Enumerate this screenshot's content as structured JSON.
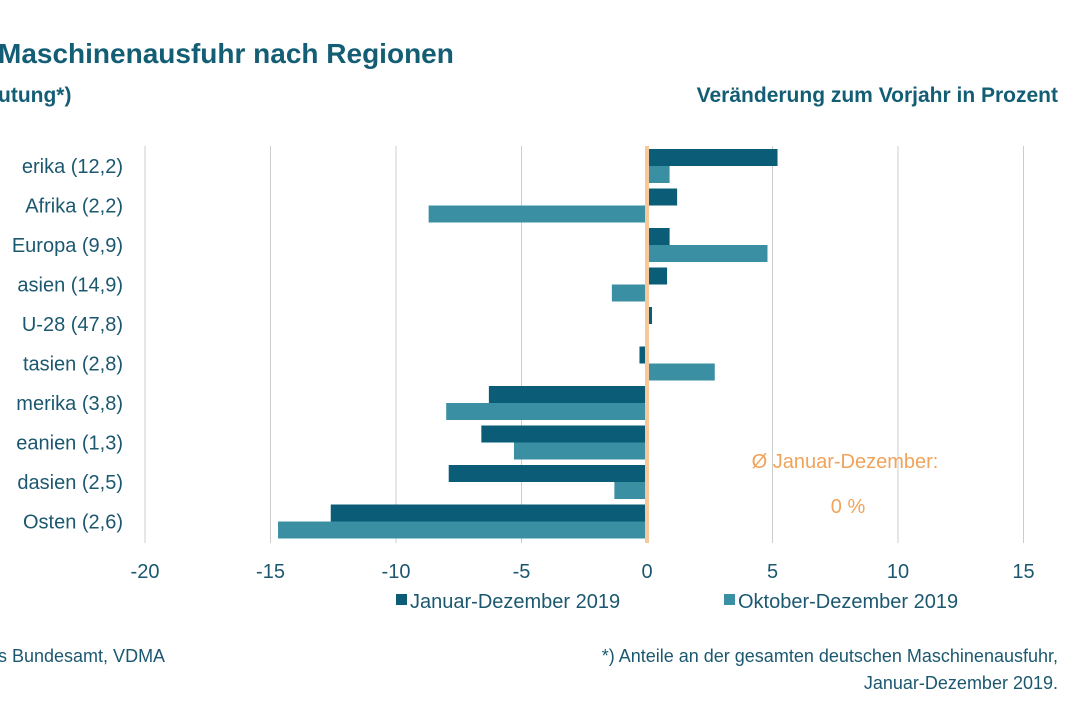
{
  "header": {
    "title": "Maschinenausfuhr nach Regionen",
    "subtitle_left": "utung*)",
    "subtitle_right": "Veränderung zum Vorjahr in Prozent"
  },
  "footer": {
    "source": "s Bundesamt, VDMA",
    "note_line1": "*) Anteile an der gesamten deutschen Maschinenausfuhr,",
    "note_line2": "Januar-Dezember 2019."
  },
  "colors": {
    "series1": "#0a5c77",
    "series2": "#3b8fa3",
    "zero_line": "#f7c89a",
    "annotation": "#f0a35a",
    "text": "#1b5870",
    "grid": "#cccccc"
  },
  "chart_data": {
    "type": "bar",
    "orientation": "horizontal",
    "categories": [
      "erika (12,2)",
      "Afrika (2,2)",
      "Europa (9,9)",
      "asien (14,9)",
      "U-28 (47,8)",
      "tasien (2,8)",
      "merika (3,8)",
      "eanien (1,3)",
      "dasien (2,5)",
      "Osten (2,6)"
    ],
    "series": [
      {
        "name": "Januar-Dezember 2019",
        "values": [
          5.2,
          1.2,
          0.9,
          0.8,
          0.2,
          -0.3,
          -6.3,
          -6.6,
          -7.9,
          -12.6
        ]
      },
      {
        "name": "Oktober-Dezember 2019",
        "values": [
          0.9,
          -8.7,
          4.8,
          -1.4,
          0.0,
          2.7,
          -8.0,
          -5.3,
          -1.3,
          -14.7
        ]
      }
    ],
    "xlim": [
      -20,
      15
    ],
    "xticks": [
      "-20",
      "-15",
      "-10",
      "-5",
      "0",
      "5",
      "10",
      "15"
    ],
    "grid": true,
    "legend_position": "bottom",
    "annotation": {
      "label": "Ø Januar-Dezember:",
      "value": "0 %"
    }
  }
}
